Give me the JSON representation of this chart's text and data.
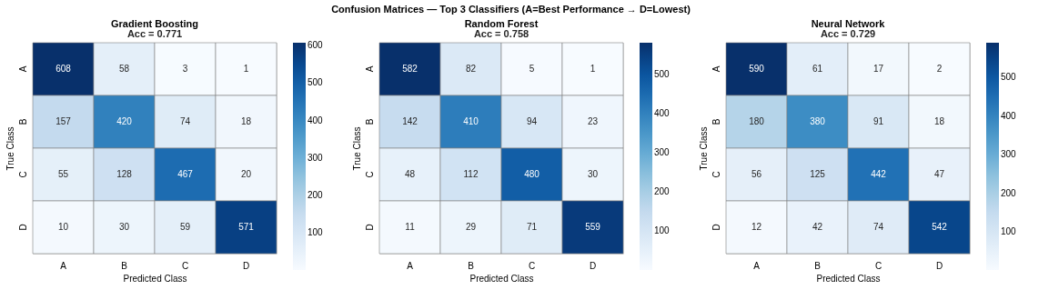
{
  "chart_data": [
    {
      "type": "heatmap",
      "title": "Gradient Boosting",
      "subtitle": "Acc = 0.771",
      "annotations": [
        "Confusion Matrices — Top 3 Classifiers (A=Best Performance → D=Lowest)"
      ],
      "xlabel": "Predicted Class",
      "ylabel": "True Class",
      "categories": [
        "A",
        "B",
        "C",
        "D"
      ],
      "y_categories": [
        "A",
        "B",
        "C",
        "D"
      ],
      "cells": [
        [
          608,
          58,
          3,
          1
        ],
        [
          157,
          420,
          74,
          18
        ],
        [
          55,
          128,
          467,
          20
        ],
        [
          10,
          30,
          59,
          571
        ]
      ],
      "clim": [
        1,
        608
      ],
      "cticks": [
        100,
        200,
        300,
        400,
        500,
        600
      ],
      "data_labels": true
    },
    {
      "type": "heatmap",
      "title": "Random Forest",
      "subtitle": "Acc = 0.758",
      "xlabel": "Predicted Class",
      "ylabel": "True Class",
      "categories": [
        "A",
        "B",
        "C",
        "D"
      ],
      "y_categories": [
        "A",
        "B",
        "C",
        "D"
      ],
      "cells": [
        [
          582,
          82,
          5,
          1
        ],
        [
          142,
          410,
          94,
          23
        ],
        [
          48,
          112,
          480,
          30
        ],
        [
          11,
          29,
          71,
          559
        ]
      ],
      "clim": [
        1,
        582
      ],
      "cticks": [
        100,
        200,
        300,
        400,
        500
      ],
      "data_labels": true
    },
    {
      "type": "heatmap",
      "title": "Neural Network",
      "subtitle": "Acc = 0.729",
      "xlabel": "Predicted Class",
      "ylabel": "True Class",
      "categories": [
        "A",
        "B",
        "C",
        "D"
      ],
      "y_categories": [
        "A",
        "B",
        "C",
        "D"
      ],
      "cells": [
        [
          590,
          61,
          17,
          2
        ],
        [
          180,
          380,
          91,
          18
        ],
        [
          56,
          125,
          442,
          47
        ],
        [
          12,
          42,
          74,
          542
        ]
      ],
      "clim": [
        2,
        590
      ],
      "cticks": [
        100,
        200,
        300,
        400,
        500
      ],
      "data_labels": true
    }
  ]
}
